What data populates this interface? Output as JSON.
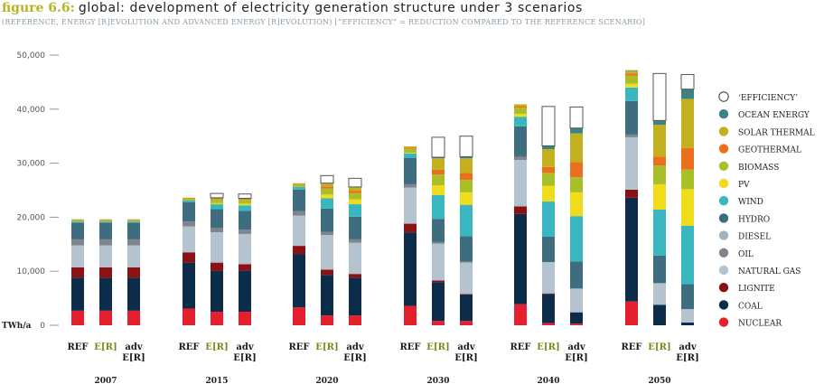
{
  "header": {
    "figure_label": "figure 6.6:",
    "title": "global: development of electricity generation structure under 3 scenarios",
    "subtitle": "(REFERENCE, ENERGY [R]EVOLUTION AND ADVANCED ENERGY [R]EVOLUTION) [“EFFICIENCY” = REDUCTION COMPARED TO THE REFERENCE SCENARIO]"
  },
  "chart_data": {
    "type": "bar",
    "stacked": true,
    "title": "global: development of electricity generation structure under 3 scenarios",
    "ylabel": "TWh/a",
    "ylim": [
      0,
      50000
    ],
    "yticks": [
      0,
      10000,
      20000,
      30000,
      40000,
      50000
    ],
    "ytick_labels": [
      "0",
      "10,000",
      "20,000",
      "30,000",
      "40,000",
      "50,000"
    ],
    "grid": false,
    "legend_position": "right",
    "years": [
      "2007",
      "2015",
      "2020",
      "2030",
      "2040",
      "2050"
    ],
    "scenarios": [
      {
        "label": "REF",
        "color": "#1a1a1a"
      },
      {
        "label": "E[R]",
        "color": "#7a8a1a"
      },
      {
        "label": "adv E[R]",
        "color": "#1a1a1a"
      }
    ],
    "series": [
      {
        "name": "NUCLEAR",
        "color": "#e5202e",
        "values": [
          [
            2700,
            2700,
            2700
          ],
          [
            3100,
            2500,
            2500
          ],
          [
            3300,
            1800,
            1800
          ],
          [
            3600,
            800,
            800
          ],
          [
            3900,
            400,
            300
          ],
          [
            4400,
            0,
            0
          ]
        ]
      },
      {
        "name": "COAL",
        "color": "#0d2c49",
        "values": [
          [
            6100,
            6100,
            6100
          ],
          [
            8500,
            7600,
            7600
          ],
          [
            9900,
            7500,
            7000
          ],
          [
            13600,
            7200,
            4900
          ],
          [
            16700,
            5400,
            2100
          ],
          [
            19200,
            3800,
            500
          ]
        ]
      },
      {
        "name": "LIGNITE",
        "color": "#8b1214",
        "values": [
          [
            1900,
            1900,
            1900
          ],
          [
            1900,
            1500,
            1200
          ],
          [
            1500,
            1000,
            700
          ],
          [
            1600,
            300,
            100
          ],
          [
            1400,
            100,
            0
          ],
          [
            1500,
            0,
            0
          ]
        ]
      },
      {
        "name": "NATURAL GAS",
        "color": "#b4c3cd",
        "values": [
          [
            4100,
            4100,
            4100
          ],
          [
            4800,
            5600,
            5600
          ],
          [
            5600,
            6400,
            5800
          ],
          [
            6700,
            6800,
            5800
          ],
          [
            8600,
            5800,
            4400
          ],
          [
            9700,
            4000,
            2500
          ]
        ]
      },
      {
        "name": "OIL",
        "color": "#7f858c",
        "values": [
          [
            1100,
            1100,
            1100
          ],
          [
            900,
            800,
            800
          ],
          [
            800,
            600,
            600
          ],
          [
            600,
            300,
            200
          ],
          [
            600,
            0,
            0
          ],
          [
            500,
            0,
            0
          ]
        ]
      },
      {
        "name": "DIESEL",
        "color": "#a2b3bd",
        "values": [
          [
            0,
            0,
            0
          ],
          [
            0,
            0,
            0
          ],
          [
            0,
            0,
            0
          ],
          [
            0,
            0,
            0
          ],
          [
            0,
            0,
            0
          ],
          [
            0,
            0,
            0
          ]
        ]
      },
      {
        "name": "HYDRO",
        "color": "#3f6d80",
        "values": [
          [
            3100,
            3100,
            3100
          ],
          [
            3600,
            3500,
            3500
          ],
          [
            4000,
            4300,
            4200
          ],
          [
            4900,
            4300,
            4700
          ],
          [
            5600,
            4700,
            5000
          ],
          [
            6200,
            5100,
            4600
          ]
        ]
      },
      {
        "name": "WIND",
        "color": "#39b6c0",
        "values": [
          [
            200,
            200,
            200
          ],
          [
            300,
            900,
            1000
          ],
          [
            500,
            1900,
            2300
          ],
          [
            800,
            4400,
            5800
          ],
          [
            1800,
            6500,
            8400
          ],
          [
            2500,
            8500,
            10800
          ]
        ]
      },
      {
        "name": "PV",
        "color": "#f0dc1a",
        "values": [
          [
            0,
            0,
            0
          ],
          [
            0,
            200,
            300
          ],
          [
            0,
            700,
            900
          ],
          [
            100,
            1800,
            2300
          ],
          [
            500,
            2900,
            4400
          ],
          [
            700,
            4700,
            6800
          ]
        ]
      },
      {
        "name": "BIOMASS",
        "color": "#a8bf28",
        "values": [
          [
            300,
            300,
            300
          ],
          [
            400,
            700,
            700
          ],
          [
            500,
            1100,
            1200
          ],
          [
            800,
            2000,
            2300
          ],
          [
            1200,
            2400,
            2800
          ],
          [
            1500,
            3500,
            3600
          ]
        ]
      },
      {
        "name": "GEOTHERMAL",
        "color": "#ec6f1f",
        "values": [
          [
            100,
            100,
            100
          ],
          [
            100,
            200,
            200
          ],
          [
            100,
            400,
            400
          ],
          [
            200,
            900,
            1300
          ],
          [
            300,
            1100,
            2800
          ],
          [
            400,
            1600,
            4000
          ]
        ]
      },
      {
        "name": "SOLAR THERMAL",
        "color": "#c2b01f",
        "values": [
          [
            0,
            0,
            0
          ],
          [
            0,
            100,
            100
          ],
          [
            100,
            600,
            700
          ],
          [
            200,
            2100,
            2700
          ],
          [
            300,
            3300,
            5300
          ],
          [
            500,
            5900,
            9100
          ]
        ]
      },
      {
        "name": "OCEAN ENERGY",
        "color": "#3d8383",
        "values": [
          [
            0,
            0,
            0
          ],
          [
            0,
            0,
            0
          ],
          [
            0,
            0,
            0
          ],
          [
            0,
            200,
            300
          ],
          [
            0,
            600,
            1000
          ],
          [
            100,
            800,
            1800
          ]
        ]
      },
      {
        "name": "‘EFFICIENCY’",
        "color": "#ffffff",
        "outline": "#555555",
        "values": [
          [
            0,
            0,
            0
          ],
          [
            0,
            800,
            800
          ],
          [
            0,
            1400,
            1600
          ],
          [
            0,
            3700,
            3800
          ],
          [
            0,
            7300,
            3900
          ],
          [
            0,
            8700,
            2700
          ]
        ]
      }
    ],
    "legend_order": [
      "‘EFFICIENCY’",
      "OCEAN ENERGY",
      "SOLAR THERMAL",
      "GEOTHERMAL",
      "BIOMASS",
      "PV",
      "WIND",
      "HYDRO",
      "DIESEL",
      "OIL",
      "NATURAL GAS",
      "LIGNITE",
      "COAL",
      "NUCLEAR"
    ]
  }
}
